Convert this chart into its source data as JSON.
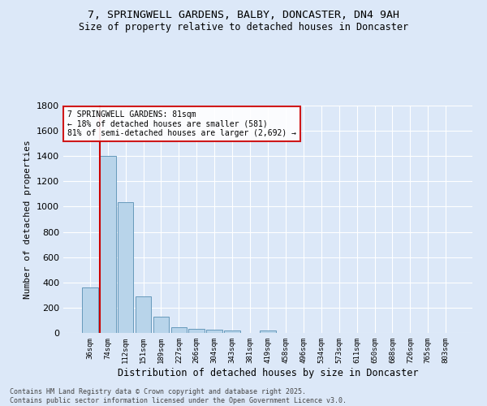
{
  "title_line1": "7, SPRINGWELL GARDENS, BALBY, DONCASTER, DN4 9AH",
  "title_line2": "Size of property relative to detached houses in Doncaster",
  "xlabel": "Distribution of detached houses by size in Doncaster",
  "ylabel": "Number of detached properties",
  "bin_labels": [
    "36sqm",
    "74sqm",
    "112sqm",
    "151sqm",
    "189sqm",
    "227sqm",
    "266sqm",
    "304sqm",
    "343sqm",
    "381sqm",
    "419sqm",
    "458sqm",
    "496sqm",
    "534sqm",
    "573sqm",
    "611sqm",
    "650sqm",
    "688sqm",
    "726sqm",
    "765sqm",
    "803sqm"
  ],
  "bar_values": [
    360,
    1400,
    1035,
    290,
    130,
    42,
    35,
    25,
    18,
    0,
    18,
    0,
    0,
    0,
    0,
    0,
    0,
    0,
    0,
    0,
    0
  ],
  "bar_color": "#b8d4ea",
  "bar_edge_color": "#6699bb",
  "red_line_label": "7 SPRINGWELL GARDENS: 81sqm",
  "annotation_line2": "← 18% of detached houses are smaller (581)",
  "annotation_line3": "81% of semi-detached houses are larger (2,692) →",
  "ylim": [
    0,
    1800
  ],
  "yticks": [
    0,
    200,
    400,
    600,
    800,
    1000,
    1200,
    1400,
    1600,
    1800
  ],
  "bg_color": "#dce8f8",
  "plot_bg_color": "#dce8f8",
  "grid_color": "#ffffff",
  "footer_line1": "Contains HM Land Registry data © Crown copyright and database right 2025.",
  "footer_line2": "Contains public sector information licensed under the Open Government Licence v3.0."
}
